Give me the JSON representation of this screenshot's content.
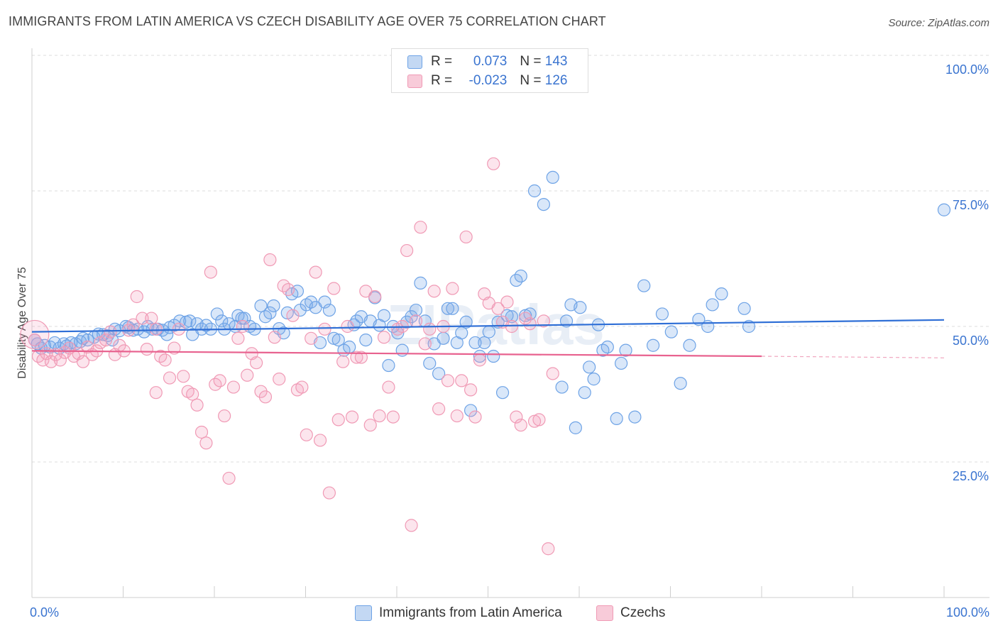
{
  "header": {
    "title": "IMMIGRANTS FROM LATIN AMERICA VS CZECH DISABILITY AGE OVER 75 CORRELATION CHART",
    "source": "Source: ZipAtlas.com"
  },
  "legend": {
    "r_label": "R = ",
    "n_label": "N = ",
    "series_a": {
      "r": "0.073",
      "n": "143"
    },
    "series_b": {
      "r": "-0.023",
      "n": "126"
    }
  },
  "watermark": "ZIPatlas",
  "chart_data": {
    "type": "scatter",
    "title": "IMMIGRANTS FROM LATIN AMERICA VS CZECH DISABILITY AGE OVER 75 CORRELATION CHART",
    "ylabel": "Disability Age Over 75",
    "xlabel": "",
    "xlim": [
      0,
      100
    ],
    "ylim": [
      0,
      100
    ],
    "x_tick_labels": [
      "0.0%",
      "100.0%"
    ],
    "y_ticks": [
      25,
      50,
      75,
      100
    ],
    "y_tick_labels": [
      "25.0%",
      "50.0%",
      "75.0%",
      "100.0%"
    ],
    "grid": true,
    "legend_position": "top-center",
    "colors": {
      "series_a": "#6ea3e6",
      "series_b": "#f09ab5",
      "line_a": "#2f6fd6",
      "line_b": "#e8628f"
    },
    "series": [
      {
        "name": "Immigrants from Latin America",
        "r": 0.073,
        "n": 143,
        "trend": {
          "x": [
            0,
            100
          ],
          "y": [
            49.0,
            51.2
          ]
        },
        "points": [
          [
            0.3,
            47.5
          ],
          [
            0.6,
            46.8
          ],
          [
            1.0,
            46.0
          ],
          [
            1.4,
            46.5
          ],
          [
            2.0,
            46.2
          ],
          [
            2.5,
            47.0
          ],
          [
            3.0,
            46.0
          ],
          [
            3.5,
            46.8
          ],
          [
            3.8,
            46.4
          ],
          [
            4.3,
            47.0
          ],
          [
            4.8,
            46.8
          ],
          [
            5.3,
            47.2
          ],
          [
            5.6,
            47.8
          ],
          [
            6.1,
            47.5
          ],
          [
            6.8,
            48.0
          ],
          [
            7.3,
            48.6
          ],
          [
            7.8,
            48.5
          ],
          [
            8.3,
            48.3
          ],
          [
            8.8,
            47.5
          ],
          [
            9.1,
            49.5
          ],
          [
            9.6,
            49.2
          ],
          [
            10.3,
            50.0
          ],
          [
            10.6,
            49.8
          ],
          [
            11.1,
            49.3
          ],
          [
            11.6,
            49.5
          ],
          [
            12.3,
            49.0
          ],
          [
            12.7,
            50.0
          ],
          [
            13.2,
            49.5
          ],
          [
            13.8,
            49.5
          ],
          [
            14.3,
            49.3
          ],
          [
            14.8,
            48.5
          ],
          [
            15.1,
            49.8
          ],
          [
            15.6,
            50.2
          ],
          [
            16.2,
            51.0
          ],
          [
            16.9,
            50.8
          ],
          [
            17.3,
            51.0
          ],
          [
            17.6,
            48.5
          ],
          [
            18.1,
            50.5
          ],
          [
            18.6,
            49.5
          ],
          [
            19.1,
            50.2
          ],
          [
            19.6,
            49.5
          ],
          [
            20.3,
            52.3
          ],
          [
            20.8,
            51.0
          ],
          [
            21.1,
            49.5
          ],
          [
            21.6,
            50.5
          ],
          [
            22.3,
            50.0
          ],
          [
            22.6,
            52.0
          ],
          [
            23.0,
            51.5
          ],
          [
            23.3,
            51.5
          ],
          [
            23.9,
            50.0
          ],
          [
            24.4,
            49.5
          ],
          [
            25.1,
            53.8
          ],
          [
            25.6,
            51.8
          ],
          [
            26.1,
            52.5
          ],
          [
            26.5,
            53.8
          ],
          [
            27.1,
            49.6
          ],
          [
            27.6,
            48.8
          ],
          [
            28.0,
            52.5
          ],
          [
            28.5,
            56.0
          ],
          [
            29.1,
            56.5
          ],
          [
            29.4,
            53.0
          ],
          [
            30.1,
            54.0
          ],
          [
            30.6,
            54.5
          ],
          [
            31.1,
            53.5
          ],
          [
            31.6,
            47.0
          ],
          [
            32.1,
            54.5
          ],
          [
            32.6,
            53.0
          ],
          [
            33.1,
            47.8
          ],
          [
            33.6,
            47.5
          ],
          [
            34.2,
            45.6
          ],
          [
            34.8,
            46.2
          ],
          [
            35.3,
            50.3
          ],
          [
            35.6,
            51.0
          ],
          [
            36.1,
            51.8
          ],
          [
            36.6,
            47.5
          ],
          [
            37.1,
            51.0
          ],
          [
            37.6,
            55.3
          ],
          [
            38.1,
            50.2
          ],
          [
            38.6,
            52.0
          ],
          [
            39.1,
            42.8
          ],
          [
            39.6,
            50.0
          ],
          [
            40.1,
            48.8
          ],
          [
            40.6,
            45.6
          ],
          [
            41.1,
            50.8
          ],
          [
            41.6,
            51.8
          ],
          [
            42.1,
            53.0
          ],
          [
            42.6,
            58.0
          ],
          [
            43.1,
            51.0
          ],
          [
            43.6,
            43.2
          ],
          [
            44.1,
            46.8
          ],
          [
            44.6,
            41.3
          ],
          [
            45.1,
            47.8
          ],
          [
            45.6,
            53.3
          ],
          [
            46.1,
            53.3
          ],
          [
            46.6,
            47.0
          ],
          [
            47.1,
            48.8
          ],
          [
            47.6,
            50.8
          ],
          [
            48.1,
            34.5
          ],
          [
            48.6,
            47.0
          ],
          [
            49.1,
            44.5
          ],
          [
            49.6,
            47.0
          ],
          [
            50.1,
            49.0
          ],
          [
            50.6,
            44.5
          ],
          [
            51.1,
            50.8
          ],
          [
            51.6,
            37.8
          ],
          [
            52.1,
            52.0
          ],
          [
            52.6,
            51.8
          ],
          [
            53.1,
            58.5
          ],
          [
            53.6,
            59.3
          ],
          [
            54.1,
            52.0
          ],
          [
            54.6,
            52.3
          ],
          [
            55.1,
            75.0
          ],
          [
            56.1,
            72.5
          ],
          [
            57.1,
            77.5
          ],
          [
            58.1,
            38.8
          ],
          [
            58.6,
            51.0
          ],
          [
            59.1,
            54.0
          ],
          [
            59.6,
            31.3
          ],
          [
            60.1,
            53.5
          ],
          [
            60.6,
            37.8
          ],
          [
            61.1,
            42.5
          ],
          [
            61.6,
            40.3
          ],
          [
            62.1,
            50.3
          ],
          [
            62.6,
            45.6
          ],
          [
            63.1,
            46.2
          ],
          [
            64.1,
            33.0
          ],
          [
            64.6,
            43.2
          ],
          [
            65.1,
            45.6
          ],
          [
            66.1,
            33.3
          ],
          [
            67.1,
            57.5
          ],
          [
            68.1,
            46.5
          ],
          [
            69.1,
            52.3
          ],
          [
            70.1,
            49.0
          ],
          [
            71.1,
            39.5
          ],
          [
            72.1,
            46.5
          ],
          [
            73.1,
            51.3
          ],
          [
            74.1,
            50.0
          ],
          [
            74.6,
            54.0
          ],
          [
            75.6,
            56.0
          ],
          [
            78.1,
            53.3
          ],
          [
            78.6,
            50.0
          ],
          [
            100.0,
            71.5
          ]
        ]
      },
      {
        "name": "Czechs",
        "r": -0.023,
        "n": 126,
        "trend": {
          "x": [
            0,
            80
          ],
          "y": [
            45.5,
            44.5
          ]
        },
        "trend_dashed": {
          "x": [
            80,
            100
          ],
          "y": [
            44.5,
            44.2
          ]
        },
        "points": [
          [
            0.3,
            47.5
          ],
          [
            0.7,
            44.5
          ],
          [
            1.2,
            43.8
          ],
          [
            1.6,
            45.0
          ],
          [
            2.1,
            43.5
          ],
          [
            2.6,
            44.8
          ],
          [
            3.1,
            43.8
          ],
          [
            3.6,
            45.2
          ],
          [
            4.1,
            46.0
          ],
          [
            4.6,
            44.5
          ],
          [
            5.1,
            45.0
          ],
          [
            5.6,
            43.5
          ],
          [
            6.1,
            46.2
          ],
          [
            6.6,
            44.8
          ],
          [
            7.1,
            45.5
          ],
          [
            7.5,
            47.0
          ],
          [
            8.1,
            47.5
          ],
          [
            8.6,
            49.0
          ],
          [
            9.1,
            44.8
          ],
          [
            9.6,
            46.5
          ],
          [
            10.1,
            45.5
          ],
          [
            10.6,
            49.3
          ],
          [
            11.1,
            50.3
          ],
          [
            11.5,
            55.5
          ],
          [
            12.1,
            51.5
          ],
          [
            12.6,
            45.8
          ],
          [
            13.1,
            51.5
          ],
          [
            13.6,
            49.5
          ],
          [
            14.1,
            44.5
          ],
          [
            14.6,
            43.8
          ],
          [
            15.1,
            40.5
          ],
          [
            15.6,
            46.0
          ],
          [
            16.1,
            49.5
          ],
          [
            16.6,
            40.8
          ],
          [
            17.1,
            38.0
          ],
          [
            17.6,
            37.5
          ],
          [
            18.1,
            35.5
          ],
          [
            18.6,
            30.5
          ],
          [
            19.1,
            28.5
          ],
          [
            19.6,
            60.0
          ],
          [
            20.1,
            39.3
          ],
          [
            20.6,
            40.0
          ],
          [
            21.1,
            33.5
          ],
          [
            21.6,
            22.0
          ],
          [
            22.1,
            38.8
          ],
          [
            22.6,
            47.8
          ],
          [
            23.1,
            50.0
          ],
          [
            23.6,
            41.0
          ],
          [
            24.1,
            45.0
          ],
          [
            24.6,
            43.3
          ],
          [
            25.1,
            38.0
          ],
          [
            25.6,
            37.0
          ],
          [
            26.1,
            62.3
          ],
          [
            26.6,
            48.0
          ],
          [
            27.1,
            40.3
          ],
          [
            27.6,
            57.5
          ],
          [
            28.1,
            56.8
          ],
          [
            28.6,
            52.0
          ],
          [
            29.1,
            38.3
          ],
          [
            29.6,
            38.8
          ],
          [
            30.1,
            30.0
          ],
          [
            30.6,
            47.8
          ],
          [
            31.1,
            60.0
          ],
          [
            31.6,
            29.0
          ],
          [
            32.1,
            49.5
          ],
          [
            32.6,
            19.3
          ],
          [
            33.1,
            57.0
          ],
          [
            33.6,
            32.8
          ],
          [
            34.1,
            43.5
          ],
          [
            34.6,
            50.0
          ],
          [
            35.1,
            33.3
          ],
          [
            35.6,
            44.3
          ],
          [
            36.1,
            44.3
          ],
          [
            36.6,
            56.5
          ],
          [
            37.1,
            31.8
          ],
          [
            37.6,
            55.5
          ],
          [
            38.1,
            33.5
          ],
          [
            38.6,
            48.0
          ],
          [
            39.1,
            38.8
          ],
          [
            39.6,
            33.3
          ],
          [
            40.1,
            49.5
          ],
          [
            40.6,
            50.0
          ],
          [
            41.1,
            64.0
          ],
          [
            41.6,
            13.3
          ],
          [
            42.1,
            51.0
          ],
          [
            42.6,
            68.3
          ],
          [
            43.1,
            46.8
          ],
          [
            43.6,
            49.5
          ],
          [
            44.1,
            56.5
          ],
          [
            44.6,
            34.8
          ],
          [
            45.1,
            50.0
          ],
          [
            45.6,
            40.0
          ],
          [
            46.1,
            57.0
          ],
          [
            46.6,
            33.5
          ],
          [
            47.1,
            40.0
          ],
          [
            47.6,
            66.5
          ],
          [
            48.1,
            38.3
          ],
          [
            48.6,
            33.3
          ],
          [
            49.1,
            43.8
          ],
          [
            49.6,
            56.0
          ],
          [
            50.1,
            54.3
          ],
          [
            50.6,
            80.0
          ],
          [
            51.1,
            53.3
          ],
          [
            51.6,
            50.8
          ],
          [
            52.1,
            54.5
          ],
          [
            52.6,
            50.0
          ],
          [
            53.1,
            33.3
          ],
          [
            53.6,
            31.8
          ],
          [
            54.1,
            51.5
          ],
          [
            54.6,
            50.5
          ],
          [
            55.1,
            32.5
          ],
          [
            55.6,
            32.8
          ],
          [
            56.1,
            51.0
          ],
          [
            56.6,
            9.0
          ],
          [
            57.1,
            41.3
          ],
          [
            13.6,
            37.8
          ]
        ]
      }
    ]
  }
}
